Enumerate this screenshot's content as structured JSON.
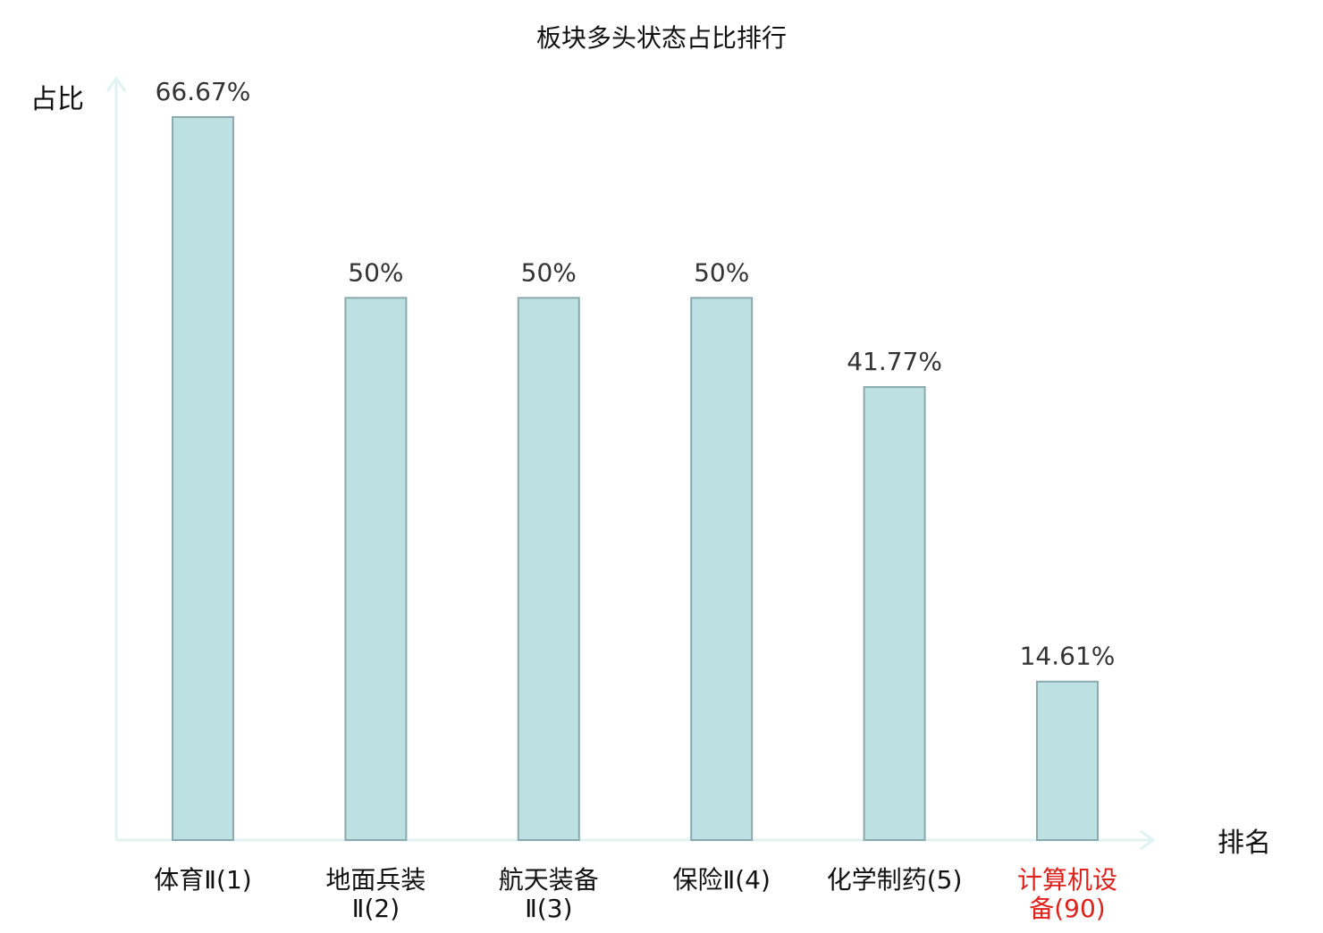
{
  "chart_data": {
    "type": "bar",
    "title": "板块多头状态占比排行",
    "ylabel": "占比",
    "xlabel": "排名",
    "ylim": [
      0,
      70
    ],
    "grid": false,
    "series": [
      {
        "values": [
          66.67,
          50,
          50,
          50,
          41.77,
          14.61
        ]
      }
    ],
    "value_labels": [
      "66.67%",
      "50%",
      "50%",
      "50%",
      "41.77%",
      "14.61%"
    ],
    "categories": [
      {
        "name": "体育Ⅱ",
        "rank": "(1)"
      },
      {
        "name": "地面兵装Ⅱ",
        "rank": "(2)"
      },
      {
        "name": "航天装备Ⅱ",
        "rank": "(3)"
      },
      {
        "name": "保险Ⅱ",
        "rank": "(4)"
      },
      {
        "name": "化学制药",
        "rank": "(5)"
      },
      {
        "name": "计算机设备",
        "rank": "(90)"
      }
    ],
    "highlight_index": 5
  },
  "colors": {
    "bar_fill": "#bde0e3",
    "bar_stroke": "#8aaaae",
    "axis": "#e0f2f1",
    "highlight": "#e0201b",
    "text": "#111111",
    "value_text": "#333333"
  }
}
